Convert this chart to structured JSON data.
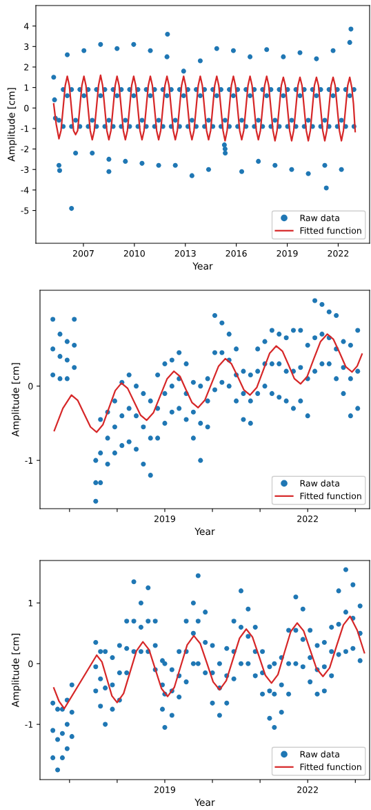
{
  "chart_data": [
    {
      "type": "scatter",
      "xlabel": "Year",
      "ylabel": "Amplitude [cm]",
      "xlim": [
        2004.2,
        2023.85
      ],
      "ylim": [
        -6.6,
        5.0
      ],
      "xticks": [
        2007,
        2010,
        2013,
        2016,
        2019,
        2022
      ],
      "yticks": [
        -5,
        -4,
        -3,
        -2,
        -1,
        0,
        1,
        2,
        3,
        4
      ],
      "legend": "lower right",
      "series": [
        {
          "name": "Raw data",
          "type": "scatter",
          "color": "#1f77b4",
          "marker": "circle",
          "x": [
            2005.25,
            2005.3,
            2005.35,
            2005.56,
            2005.56,
            2005.81,
            2005.81,
            2006.05,
            2006.05,
            2006.3,
            2006.3,
            2006.54,
            2006.54,
            2006.79,
            2006.79,
            2007.03,
            2007.03,
            2007.28,
            2007.28,
            2007.52,
            2007.52,
            2007.77,
            2007.77,
            2008.01,
            2008.01,
            2008.26,
            2008.26,
            2008.5,
            2008.5,
            2008.75,
            2008.75,
            2008.98,
            2008.98,
            2009.23,
            2009.23,
            2009.47,
            2009.47,
            2009.72,
            2009.72,
            2009.96,
            2009.96,
            2010.21,
            2010.21,
            2010.45,
            2010.45,
            2010.7,
            2010.7,
            2010.94,
            2010.94,
            2011.19,
            2011.19,
            2011.43,
            2011.43,
            2011.68,
            2011.68,
            2011.92,
            2011.92,
            2012.17,
            2012.17,
            2012.41,
            2012.41,
            2012.66,
            2012.66,
            2012.9,
            2012.9,
            2013.15,
            2013.15,
            2013.39,
            2013.39,
            2013.64,
            2013.64,
            2013.88,
            2013.88,
            2014.13,
            2014.13,
            2014.37,
            2014.37,
            2014.62,
            2014.62,
            2014.85,
            2014.85,
            2015.1,
            2015.1,
            2015.34,
            2015.34,
            2015.59,
            2015.59,
            2015.83,
            2015.83,
            2016.08,
            2016.08,
            2016.32,
            2016.32,
            2016.57,
            2016.57,
            2016.81,
            2016.81,
            2017.06,
            2017.06,
            2017.3,
            2017.3,
            2017.55,
            2017.55,
            2017.79,
            2017.79,
            2018.04,
            2018.04,
            2018.28,
            2018.28,
            2018.53,
            2018.53,
            2018.77,
            2018.77,
            2019.02,
            2019.02,
            2019.26,
            2019.26,
            2019.51,
            2019.51,
            2019.75,
            2019.75,
            2020.0,
            2020.0,
            2020.24,
            2020.24,
            2020.49,
            2020.49,
            2020.72,
            2020.72,
            2020.97,
            2020.97,
            2021.21,
            2021.21,
            2021.46,
            2021.46,
            2021.7,
            2021.7,
            2021.95,
            2021.95,
            2022.19,
            2022.19,
            2022.44,
            2022.44,
            2022.68,
            2022.68,
            2022.93,
            2022.93,
            2006.3,
            2011.95,
            2022.75,
            2021.3,
            2005.6,
            2008.5,
            2015.3,
            2015.35
          ],
          "values": [
            1.5,
            0.4,
            -0.5,
            -2.8,
            -0.6,
            -0.9,
            0.9,
            2.6,
            0.6,
            0.9,
            -0.9,
            -2.2,
            -0.6,
            -0.9,
            0.9,
            2.8,
            0.6,
            0.9,
            -0.9,
            -2.2,
            -0.6,
            -0.9,
            0.9,
            3.1,
            0.6,
            0.9,
            -0.9,
            -2.5,
            -0.6,
            -0.9,
            0.9,
            2.9,
            0.6,
            0.9,
            -0.9,
            -2.6,
            -0.6,
            -0.9,
            0.9,
            3.1,
            0.6,
            0.9,
            -0.9,
            -2.7,
            -0.6,
            -0.9,
            0.9,
            2.8,
            0.6,
            0.9,
            -0.9,
            -2.8,
            -0.6,
            -0.9,
            0.9,
            2.5,
            0.6,
            0.9,
            -0.9,
            -2.8,
            -0.6,
            -0.9,
            0.9,
            1.8,
            0.6,
            0.9,
            -0.9,
            -3.3,
            -0.6,
            -0.9,
            0.9,
            2.3,
            0.6,
            0.9,
            -0.9,
            -3.0,
            -0.6,
            -0.9,
            0.9,
            2.9,
            0.6,
            0.9,
            -0.9,
            -2.0,
            -0.6,
            -0.9,
            0.9,
            2.8,
            0.6,
            0.9,
            -0.9,
            -3.1,
            -0.6,
            -0.9,
            0.9,
            2.5,
            0.6,
            0.9,
            -0.9,
            -2.6,
            -0.6,
            -0.9,
            0.9,
            2.85,
            0.6,
            0.9,
            -0.9,
            -2.8,
            -0.6,
            -0.9,
            0.9,
            2.5,
            0.6,
            0.9,
            -0.9,
            -3.0,
            -0.6,
            -0.9,
            0.9,
            2.7,
            0.6,
            0.9,
            -0.9,
            -3.2,
            -0.6,
            -0.9,
            0.9,
            2.4,
            0.6,
            0.9,
            -0.9,
            -2.8,
            -0.6,
            -0.9,
            0.9,
            2.8,
            0.6,
            0.9,
            -0.9,
            -3.0,
            -0.6,
            -0.9,
            0.9,
            3.2,
            0.6,
            0.9,
            -0.9,
            -4.9,
            3.6,
            3.85,
            -3.9,
            -3.05,
            -3.1,
            -1.8,
            -2.2
          ]
        },
        {
          "name": "Fitted function",
          "type": "line",
          "color": "#d62728",
          "x": [
            2005.25,
            2005.4,
            2005.56,
            2005.68,
            2005.805,
            2005.93,
            2006.05,
            2006.17,
            2006.295,
            2006.42,
            2006.54,
            2006.66,
            2006.785,
            2006.91,
            2007.03,
            2007.15,
            2007.275,
            2007.4,
            2007.52,
            2007.64,
            2007.765,
            2007.89,
            2008.01,
            2008.13,
            2008.255,
            2008.38,
            2008.5,
            2008.62,
            2008.745,
            2008.87,
            2008.98,
            2009.1,
            2009.225,
            2009.35,
            2009.47,
            2009.59,
            2009.715,
            2009.84,
            2009.96,
            2010.08,
            2010.205,
            2010.33,
            2010.45,
            2010.57,
            2010.695,
            2010.82,
            2010.94,
            2011.06,
            2011.185,
            2011.31,
            2011.43,
            2011.55,
            2011.675,
            2011.8,
            2011.92,
            2012.04,
            2012.165,
            2012.29,
            2012.41,
            2012.53,
            2012.655,
            2012.78,
            2012.9,
            2013.02,
            2013.145,
            2013.27,
            2013.39,
            2013.51,
            2013.635,
            2013.76,
            2013.88,
            2014.0,
            2014.125,
            2014.25,
            2014.37,
            2014.49,
            2014.61,
            2014.73,
            2014.85,
            2014.97,
            2015.095,
            2015.22,
            2015.34,
            2015.46,
            2015.585,
            2015.71,
            2015.83,
            2015.95,
            2016.075,
            2016.2,
            2016.32,
            2016.44,
            2016.565,
            2016.69,
            2016.81,
            2016.93,
            2017.055,
            2017.18,
            2017.3,
            2017.42,
            2017.545,
            2017.67,
            2017.79,
            2017.91,
            2018.035,
            2018.16,
            2018.28,
            2018.4,
            2018.525,
            2018.65,
            2018.77,
            2018.89,
            2019.015,
            2019.14,
            2019.26,
            2019.38,
            2019.505,
            2019.63,
            2019.75,
            2019.87,
            2019.995,
            2020.12,
            2020.24,
            2020.36,
            2020.48,
            2020.6,
            2020.72,
            2020.84,
            2020.965,
            2021.09,
            2021.21,
            2021.33,
            2021.455,
            2021.58,
            2021.7,
            2021.82,
            2021.945,
            2022.07,
            2022.19,
            2022.31,
            2022.435,
            2022.56,
            2022.68,
            2022.8,
            2022.9,
            2023.0
          ],
          "values": [
            0.2,
            -0.8,
            -1.5,
            -1.1,
            0,
            1.1,
            1.55,
            1.1,
            0,
            -1.1,
            -1.3,
            -1.1,
            0,
            1.1,
            1.55,
            1.1,
            0,
            -1.1,
            -1.55,
            -1.1,
            0,
            1.1,
            1.6,
            1.1,
            0,
            -1.1,
            -1.55,
            -1.1,
            0,
            1.1,
            1.55,
            1.1,
            0,
            -1.1,
            -1.55,
            -1.1,
            0,
            1.1,
            1.55,
            1.1,
            0,
            -1.1,
            -1.55,
            -1.1,
            0,
            1.1,
            1.55,
            1.1,
            0,
            -1.1,
            -1.55,
            -1.1,
            0,
            1.1,
            1.55,
            1.1,
            0,
            -1.1,
            -1.55,
            -1.1,
            0,
            1.1,
            1.55,
            1.1,
            0,
            -1.1,
            -1.55,
            -1.1,
            0,
            1.1,
            1.55,
            1.1,
            0,
            -1.1,
            -1.55,
            -1.1,
            0,
            1.1,
            1.55,
            1.1,
            0,
            -1.1,
            -1.6,
            -1.1,
            0,
            1.1,
            1.55,
            1.1,
            0,
            -1.1,
            -1.55,
            -1.1,
            0,
            1.1,
            1.55,
            1.1,
            0,
            -1.1,
            -1.55,
            -1.1,
            0,
            1.1,
            1.55,
            1.1,
            0,
            -1.1,
            -1.6,
            -1.1,
            0,
            1.1,
            1.5,
            1.1,
            0,
            -1.1,
            -1.6,
            -1.1,
            0,
            1.1,
            1.5,
            1.1,
            0,
            -1.1,
            -1.6,
            -1.1,
            0,
            1.1,
            1.5,
            1.1,
            0,
            -1.1,
            -1.6,
            -1.1,
            0,
            1.1,
            1.5,
            1.1,
            0,
            -1.1,
            -1.6,
            -1.1,
            0,
            1.1,
            1.5,
            1.0,
            0.2,
            -1.15
          ]
        }
      ]
    },
    {
      "type": "scatter",
      "xlabel": "Year",
      "ylabel": "Amplitude [cm]",
      "xlim": [
        2016.38,
        2023.3
      ],
      "ylim": [
        -1.65,
        1.29
      ],
      "xticks": [
        {
          "value": 2017,
          "label": null
        },
        {
          "value": 2018,
          "label": null
        },
        2019,
        {
          "value": 2020,
          "label": null
        },
        {
          "value": 2021,
          "label": null
        },
        2022,
        {
          "value": 2023,
          "label": null
        }
      ],
      "yticks": [
        -1,
        0
      ],
      "legend": "lower right",
      "series": [
        {
          "name": "Raw data",
          "type": "scatter",
          "color": "#1f77b4",
          "marker": "circle",
          "x": [
            2016.65,
            2016.65,
            2016.65,
            2016.8,
            2016.8,
            2016.8,
            2016.95,
            2016.95,
            2016.95,
            2017.1,
            2017.1,
            2017.1,
            2017.55,
            2017.55,
            2017.55,
            2017.65,
            2017.65,
            2017.65,
            2017.8,
            2017.8,
            2017.8,
            2017.95,
            2017.95,
            2017.95,
            2018.1,
            2018.1,
            2018.1,
            2018.25,
            2018.25,
            2018.25,
            2018.4,
            2018.4,
            2018.4,
            2018.55,
            2018.55,
            2018.55,
            2018.7,
            2018.7,
            2018.7,
            2018.85,
            2018.85,
            2018.85,
            2019.0,
            2019.0,
            2019.0,
            2019.15,
            2019.15,
            2019.15,
            2019.3,
            2019.3,
            2019.3,
            2019.45,
            2019.45,
            2019.45,
            2019.6,
            2019.6,
            2019.6,
            2019.75,
            2019.75,
            2019.75,
            2019.9,
            2019.9,
            2019.9,
            2020.05,
            2020.05,
            2020.05,
            2020.2,
            2020.2,
            2020.2,
            2020.35,
            2020.35,
            2020.35,
            2020.5,
            2020.5,
            2020.5,
            2020.65,
            2020.65,
            2020.65,
            2020.8,
            2020.8,
            2020.8,
            2020.95,
            2020.95,
            2020.95,
            2021.1,
            2021.1,
            2021.1,
            2021.25,
            2021.25,
            2021.25,
            2021.4,
            2021.4,
            2021.4,
            2021.55,
            2021.55,
            2021.55,
            2021.7,
            2021.7,
            2021.7,
            2021.85,
            2021.85,
            2021.85,
            2022.0,
            2022.0,
            2022.0,
            2022.15,
            2022.15,
            2022.15,
            2022.3,
            2022.3,
            2022.3,
            2022.45,
            2022.45,
            2022.45,
            2022.6,
            2022.6,
            2022.6,
            2022.75,
            2022.75,
            2022.75,
            2022.9,
            2022.9,
            2022.9,
            2023.05,
            2023.05,
            2023.05
          ],
          "values": [
            0.9,
            0.5,
            0.15,
            0.7,
            0.4,
            0.1,
            0.6,
            0.35,
            0.1,
            0.9,
            0.55,
            0.25,
            -1.0,
            -1.3,
            -1.55,
            -0.45,
            -0.9,
            -1.3,
            -0.35,
            -0.7,
            -1.05,
            -0.2,
            -0.55,
            -0.9,
            0.05,
            -0.4,
            -0.8,
            0.15,
            -0.3,
            -0.75,
            0.0,
            -0.4,
            -0.85,
            -0.1,
            -0.55,
            -1.05,
            -0.2,
            -0.7,
            -1.2,
            0.15,
            -0.3,
            -0.7,
            0.3,
            -0.1,
            -0.5,
            0.35,
            0.0,
            -0.35,
            0.45,
            0.1,
            -0.3,
            0.3,
            -0.1,
            -0.45,
            0.05,
            -0.35,
            -0.7,
            0.0,
            -0.5,
            -1.0,
            0.1,
            -0.2,
            -0.55,
            0.95,
            0.45,
            -0.05,
            0.85,
            0.45,
            0.05,
            0.7,
            0.35,
            0.0,
            0.5,
            0.15,
            -0.2,
            0.2,
            -0.1,
            -0.45,
            0.15,
            -0.2,
            -0.5,
            0.5,
            0.2,
            -0.1,
            0.6,
            0.3,
            0.0,
            0.75,
            0.3,
            -0.1,
            0.7,
            0.3,
            -0.15,
            0.65,
            0.2,
            -0.2,
            0.75,
            0.2,
            -0.3,
            0.75,
            0.25,
            -0.2,
            0.55,
            0.1,
            -0.4,
            1.15,
            0.65,
            0.2,
            1.1,
            0.7,
            0.3,
            1.0,
            0.65,
            0.3,
            0.95,
            0.5,
            0.1,
            0.6,
            0.25,
            -0.1,
            0.55,
            0.1,
            -0.4,
            0.75,
            0.2,
            -0.3
          ]
        },
        {
          "name": "Fitted function",
          "type": "line",
          "color": "#d62728",
          "x": [
            2016.68,
            2016.86,
            2017.04,
            2017.17,
            2017.305,
            2017.44,
            2017.57,
            2017.7,
            2017.83,
            2017.96,
            2018.09,
            2018.22,
            2018.355,
            2018.49,
            2018.62,
            2018.76,
            2018.905,
            2019.05,
            2019.19,
            2019.32,
            2019.445,
            2019.57,
            2019.7,
            2019.84,
            2019.985,
            2020.13,
            2020.27,
            2020.4,
            2020.53,
            2020.66,
            2020.79,
            2020.93,
            2021.065,
            2021.2,
            2021.34,
            2021.47,
            2021.595,
            2021.72,
            2021.85,
            2021.99,
            2022.13,
            2022.27,
            2022.41,
            2022.54,
            2022.67,
            2022.8,
            2022.93,
            2023.04,
            2023.14
          ],
          "values": [
            -0.6,
            -0.3,
            -0.12,
            -0.19,
            -0.37,
            -0.55,
            -0.62,
            -0.52,
            -0.29,
            -0.06,
            0.04,
            -0.03,
            -0.21,
            -0.39,
            -0.46,
            -0.36,
            -0.13,
            0.1,
            0.2,
            0.13,
            -0.05,
            -0.22,
            -0.29,
            -0.19,
            0.04,
            0.27,
            0.37,
            0.3,
            0.13,
            -0.05,
            -0.12,
            -0.02,
            0.21,
            0.44,
            0.54,
            0.47,
            0.29,
            0.1,
            0.03,
            0.13,
            0.37,
            0.6,
            0.7,
            0.63,
            0.45,
            0.26,
            0.19,
            0.27,
            0.43
          ]
        }
      ]
    },
    {
      "type": "scatter",
      "xlabel": "Year",
      "ylabel": "Amplitude [cm]",
      "xlim": [
        2016.38,
        2023.3
      ],
      "ylim": [
        -1.91,
        1.7
      ],
      "xticks": [
        {
          "value": 2017,
          "label": null
        },
        {
          "value": 2018,
          "label": null
        },
        2019,
        {
          "value": 2020,
          "label": null
        },
        {
          "value": 2021,
          "label": null
        },
        2022,
        {
          "value": 2023,
          "label": null
        }
      ],
      "yticks": [
        -1,
        0,
        1
      ],
      "legend": "lower right",
      "series": [
        {
          "name": "Raw data",
          "type": "scatter",
          "color": "#1f77b4",
          "marker": "circle",
          "x": [
            2016.65,
            2016.65,
            2016.65,
            2016.75,
            2016.75,
            2016.75,
            2016.85,
            2016.85,
            2016.85,
            2016.95,
            2016.95,
            2016.95,
            2017.05,
            2017.05,
            2017.05,
            2017.55,
            2017.55,
            2017.55,
            2017.65,
            2017.65,
            2017.65,
            2017.75,
            2017.75,
            2017.75,
            2017.9,
            2017.9,
            2017.9,
            2018.05,
            2018.05,
            2018.05,
            2018.2,
            2018.2,
            2018.2,
            2018.35,
            2018.35,
            2018.35,
            2018.5,
            2018.5,
            2018.5,
            2018.65,
            2018.65,
            2018.65,
            2018.8,
            2018.8,
            2018.8,
            2018.95,
            2018.95,
            2018.95,
            2019.0,
            2019.0,
            2019.0,
            2019.15,
            2019.15,
            2019.15,
            2019.3,
            2019.3,
            2019.3,
            2019.45,
            2019.45,
            2019.45,
            2019.6,
            2019.6,
            2019.6,
            2019.7,
            2019.7,
            2019.7,
            2019.85,
            2019.85,
            2019.85,
            2020.0,
            2020.0,
            2020.0,
            2020.15,
            2020.15,
            2020.15,
            2020.3,
            2020.3,
            2020.3,
            2020.45,
            2020.45,
            2020.45,
            2020.6,
            2020.6,
            2020.6,
            2020.75,
            2020.75,
            2020.75,
            2020.9,
            2020.9,
            2020.9,
            2021.05,
            2021.05,
            2021.05,
            2021.2,
            2021.2,
            2021.2,
            2021.3,
            2021.3,
            2021.3,
            2021.45,
            2021.45,
            2021.45,
            2021.6,
            2021.6,
            2021.6,
            2021.75,
            2021.75,
            2021.75,
            2021.9,
            2021.9,
            2021.9,
            2022.05,
            2022.05,
            2022.05,
            2022.2,
            2022.2,
            2022.2,
            2022.35,
            2022.35,
            2022.35,
            2022.5,
            2022.5,
            2022.5,
            2022.65,
            2022.65,
            2022.65,
            2022.8,
            2022.8,
            2022.8,
            2022.95,
            2022.95,
            2022.95,
            2023.1,
            2023.1,
            2023.1
          ],
          "values": [
            -0.65,
            -1.1,
            -1.55,
            -0.75,
            -1.25,
            -1.75,
            -0.75,
            -1.15,
            -1.55,
            -0.6,
            -1.0,
            -1.4,
            -0.35,
            -0.8,
            -1.2,
            0.35,
            -0.05,
            -0.45,
            0.2,
            -0.25,
            -0.7,
            0.2,
            -0.4,
            -1.0,
            0.1,
            -0.35,
            -0.75,
            0.3,
            -0.15,
            -0.6,
            0.7,
            0.25,
            -0.15,
            1.35,
            0.7,
            0.2,
            1.0,
            0.6,
            0.2,
            1.25,
            0.7,
            0.2,
            0.7,
            0.3,
            -0.1,
            0.05,
            -0.35,
            -0.75,
            0.0,
            -0.5,
            -1.05,
            -0.1,
            -0.45,
            -0.85,
            0.2,
            -0.2,
            -0.55,
            0.7,
            0.2,
            -0.3,
            1.0,
            0.5,
            0.0,
            1.45,
            0.7,
            0.0,
            0.85,
            0.35,
            -0.15,
            0.3,
            -0.15,
            -0.65,
            0.0,
            -0.4,
            -0.85,
            0.25,
            -0.2,
            -0.65,
            0.7,
            0.2,
            -0.25,
            1.2,
            0.6,
            0.0,
            0.9,
            0.45,
            0.0,
            0.6,
            0.2,
            -0.2,
            0.2,
            -0.15,
            -0.5,
            -0.05,
            -0.45,
            -0.9,
            0.0,
            -0.5,
            -1.05,
            0.1,
            -0.35,
            -0.8,
            0.55,
            0.0,
            -0.5,
            1.1,
            0.55,
            0.0,
            0.9,
            0.4,
            -0.05,
            0.55,
            0.1,
            -0.3,
            0.3,
            -0.1,
            -0.5,
            0.35,
            -0.05,
            -0.45,
            0.6,
            0.2,
            -0.2,
            1.2,
            0.65,
            0.15,
            1.55,
            0.85,
            0.2,
            1.3,
            0.75,
            0.25,
            0.95,
            0.5,
            0.05
          ]
        },
        {
          "name": "Fitted function",
          "type": "line",
          "color": "#d62728",
          "x": [
            2016.67,
            2016.78,
            2016.89,
            2017.57,
            2017.68,
            2017.785,
            2017.89,
            2018.0,
            2018.135,
            2018.27,
            2018.405,
            2018.54,
            2018.67,
            2018.8,
            2018.93,
            2019.06,
            2019.2,
            2019.335,
            2019.47,
            2019.61,
            2019.745,
            2019.88,
            2020.015,
            2020.15,
            2020.29,
            2020.43,
            2020.57,
            2020.71,
            2020.84,
            2020.975,
            2021.11,
            2021.24,
            2021.375,
            2021.51,
            2021.645,
            2021.78,
            2021.915,
            2022.05,
            2022.185,
            2022.32,
            2022.46,
            2022.605,
            2022.75,
            2022.89,
            2023.04,
            2023.19
          ],
          "values": [
            -0.4,
            -0.62,
            -0.74,
            0.14,
            0.03,
            -0.25,
            -0.53,
            -0.64,
            -0.49,
            -0.14,
            0.21,
            0.36,
            0.23,
            -0.09,
            -0.41,
            -0.54,
            -0.39,
            -0.04,
            0.31,
            0.46,
            0.33,
            0.02,
            -0.3,
            -0.43,
            -0.28,
            0.07,
            0.42,
            0.57,
            0.44,
            0.13,
            -0.19,
            -0.32,
            -0.18,
            0.18,
            0.53,
            0.67,
            0.54,
            0.23,
            -0.08,
            -0.21,
            -0.07,
            0.29,
            0.64,
            0.78,
            0.55,
            0.18
          ]
        }
      ]
    }
  ]
}
